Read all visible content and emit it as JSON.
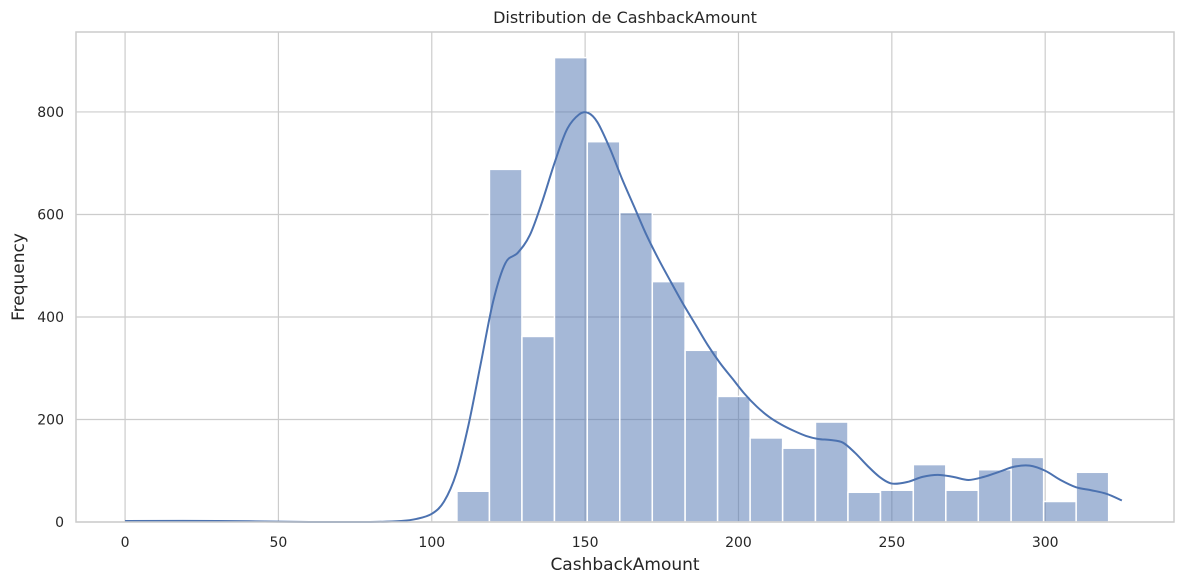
{
  "chart_data": {
    "type": "bar",
    "title": "Distribution de CashbackAmount",
    "xlabel": "CashbackAmount",
    "ylabel": "Frequency",
    "xlim": [
      -16,
      342
    ],
    "ylim": [
      0,
      956
    ],
    "xticks": [
      0,
      50,
      100,
      150,
      200,
      250,
      300
    ],
    "yticks": [
      0,
      200,
      400,
      600,
      800
    ],
    "grid": true,
    "colors": {
      "bar_fill": "#4c72b0",
      "bar_opacity": 0.5,
      "bar_edge": "#ffffff",
      "kde_line": "#4c72b0",
      "grid": "#cccccc",
      "axes_edge": "#cccccc"
    },
    "bins": [
      {
        "x0": 108.2,
        "x1": 118.8,
        "value": 60
      },
      {
        "x0": 118.8,
        "x1": 129.4,
        "value": 688
      },
      {
        "x0": 129.4,
        "x1": 140.0,
        "value": 362
      },
      {
        "x0": 140.0,
        "x1": 150.7,
        "value": 906
      },
      {
        "x0": 150.7,
        "x1": 161.3,
        "value": 742
      },
      {
        "x0": 161.3,
        "x1": 171.9,
        "value": 604
      },
      {
        "x0": 171.9,
        "x1": 182.6,
        "value": 469
      },
      {
        "x0": 182.6,
        "x1": 193.2,
        "value": 335
      },
      {
        "x0": 193.2,
        "x1": 203.8,
        "value": 245
      },
      {
        "x0": 203.8,
        "x1": 214.4,
        "value": 164
      },
      {
        "x0": 214.4,
        "x1": 225.1,
        "value": 144
      },
      {
        "x0": 225.1,
        "x1": 235.7,
        "value": 195
      },
      {
        "x0": 235.7,
        "x1": 246.3,
        "value": 58
      },
      {
        "x0": 246.3,
        "x1": 257.0,
        "value": 62
      },
      {
        "x0": 257.0,
        "x1": 267.6,
        "value": 112
      },
      {
        "x0": 267.6,
        "x1": 278.2,
        "value": 62
      },
      {
        "x0": 278.2,
        "x1": 288.9,
        "value": 102
      },
      {
        "x0": 288.9,
        "x1": 299.5,
        "value": 126
      },
      {
        "x0": 299.5,
        "x1": 310.1,
        "value": 40
      },
      {
        "x0": 310.1,
        "x1": 320.7,
        "value": 97
      }
    ],
    "kde": {
      "x": [
        0,
        30,
        60,
        80,
        90,
        95,
        100,
        104,
        108,
        112,
        116,
        120,
        124,
        128,
        132,
        136,
        140,
        144,
        148,
        151,
        154,
        158,
        162,
        166,
        170,
        174,
        178,
        182,
        186,
        190,
        194,
        198,
        202,
        206,
        210,
        214,
        218,
        222,
        226,
        230,
        234,
        238,
        242,
        246,
        250,
        255,
        260,
        265,
        270,
        275,
        280,
        285,
        290,
        295,
        300,
        305,
        310,
        315,
        320,
        325
      ],
      "y": [
        2,
        2,
        0,
        0,
        2,
        6,
        16,
        40,
        95,
        190,
        310,
        430,
        505,
        525,
        560,
        625,
        700,
        765,
        795,
        798,
        780,
        730,
        670,
        615,
        560,
        512,
        468,
        425,
        385,
        345,
        310,
        280,
        250,
        225,
        205,
        190,
        178,
        168,
        162,
        160,
        155,
        135,
        110,
        88,
        75,
        78,
        88,
        92,
        88,
        82,
        88,
        98,
        108,
        110,
        100,
        82,
        68,
        62,
        55,
        42
      ]
    }
  }
}
